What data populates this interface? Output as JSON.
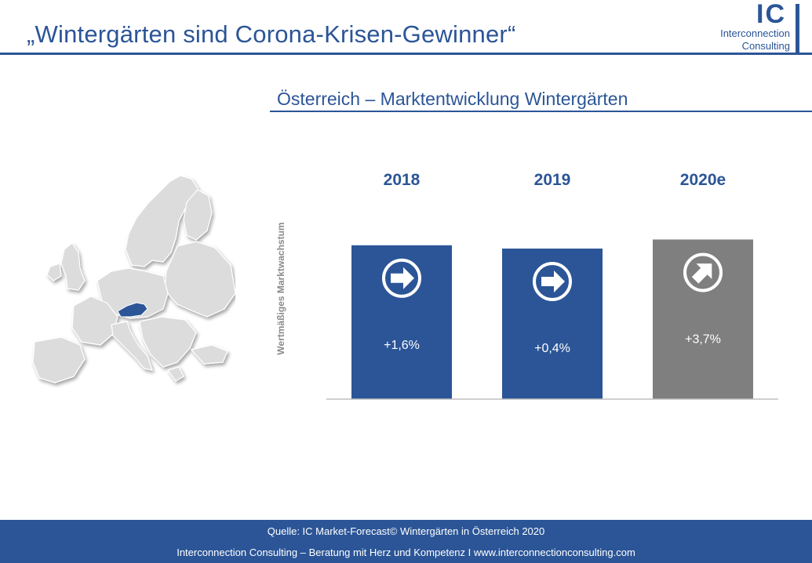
{
  "header": {
    "title": "„Wintergärten sind Corona-Krisen-Gewinner“",
    "logo": {
      "mark": "IC",
      "line1": "Interconnection",
      "line2": "Consulting"
    }
  },
  "subtitle": "Österreich – Marktentwicklung Wintergärten",
  "map": {
    "highlight": "Austria",
    "highlight_color": "#2b5597",
    "land_color": "#dcdcdc"
  },
  "chart_data": {
    "type": "bar",
    "title": "Österreich – Marktentwicklung Wintergärten",
    "ylabel": "Wertmäßiges Marktwachstum",
    "categories": [
      "2018",
      "2019",
      "2020e"
    ],
    "values": [
      1.6,
      0.4,
      3.7
    ],
    "value_labels": [
      "+1,6%",
      "+0,4%",
      "+3,7%"
    ],
    "trend_icons": [
      "arrow-right-icon",
      "arrow-right-icon",
      "arrow-up-right-icon"
    ],
    "colors": [
      "#2b5597",
      "#2b5597",
      "#7f7f7f"
    ],
    "grid": false,
    "legend": "none"
  },
  "footer": {
    "source": "Quelle: IC Market-Forecast© Wintergärten in Österreich 2020",
    "tagline": "Interconnection Consulting – Beratung mit Herz und Kompetenz I www.interconnectionconsulting.com"
  }
}
